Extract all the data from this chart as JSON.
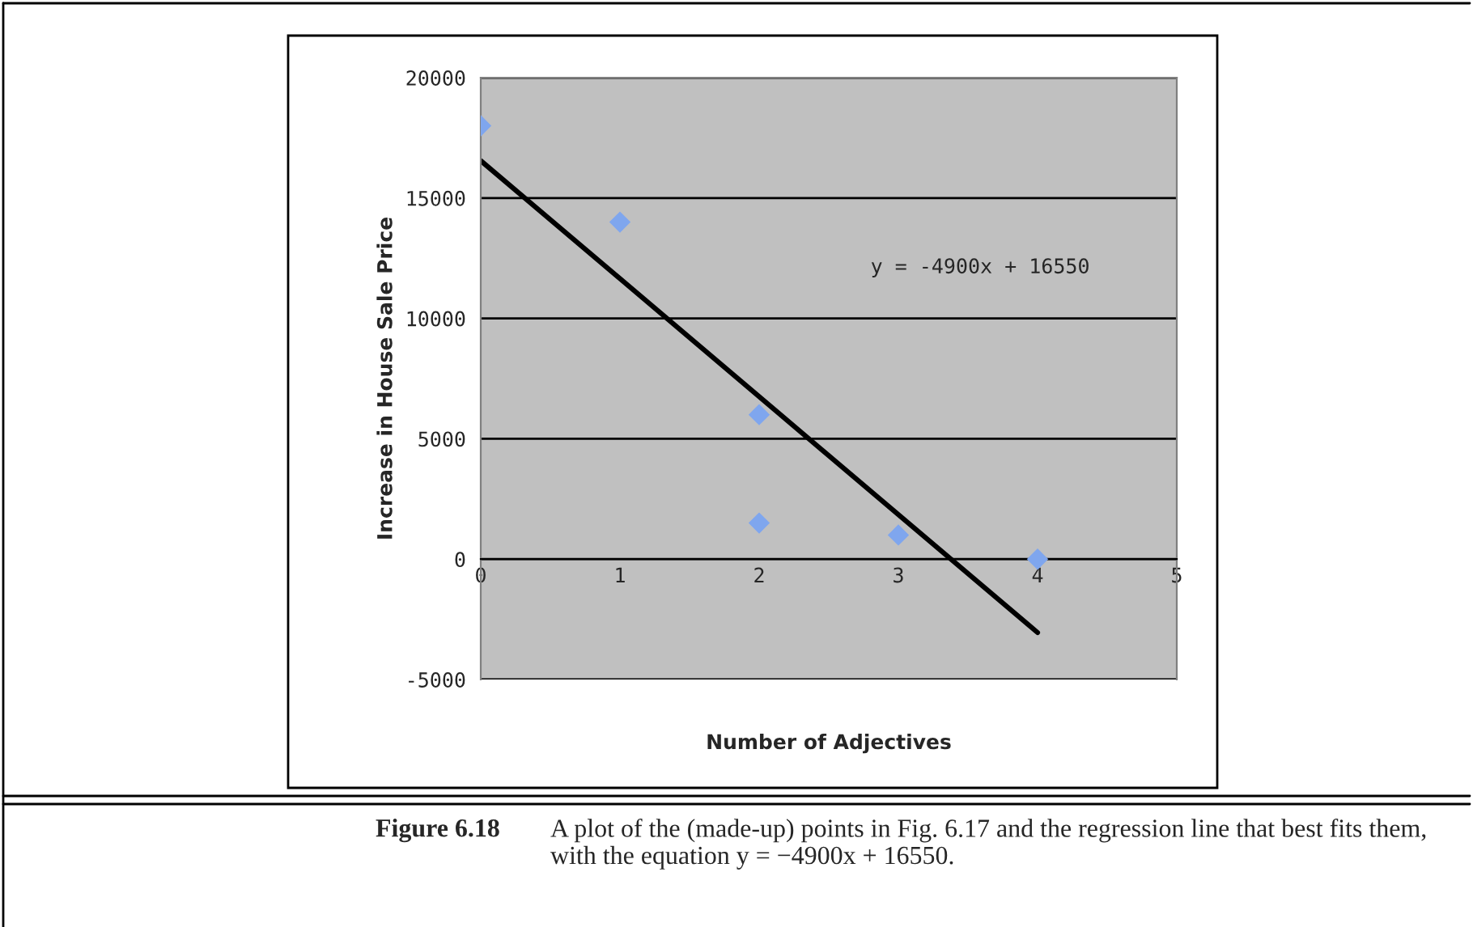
{
  "chart_data": {
    "type": "scatter",
    "xlabel": "Number of Adjectives",
    "ylabel": "Increase in House Sale Price",
    "series": [
      {
        "color": "#7fa6ee",
        "marker": "diamond",
        "x": [
          0,
          1,
          2,
          2,
          3,
          4
        ],
        "values": [
          18000,
          14000,
          6000,
          1500,
          1000,
          0
        ]
      },
      {
        "type": "line",
        "color": "#000000",
        "marker": "none",
        "x": [
          0,
          4
        ],
        "values": [
          16550,
          -3050
        ]
      }
    ],
    "xlim": [
      0,
      5
    ],
    "xticks": [
      0,
      1,
      2,
      3,
      4,
      5
    ],
    "ylim": [
      -5000,
      20000
    ],
    "yticks": [
      -5000,
      0,
      5000,
      10000,
      15000,
      20000
    ],
    "grid": "y",
    "annotations": [
      "y = -4900x + 16550",
      "Figure 6.18",
      "A plot of the (made-up) points in Fig. 6.17 and the regression line that best fits them, with the equation y = −4900x + 16550."
    ]
  }
}
